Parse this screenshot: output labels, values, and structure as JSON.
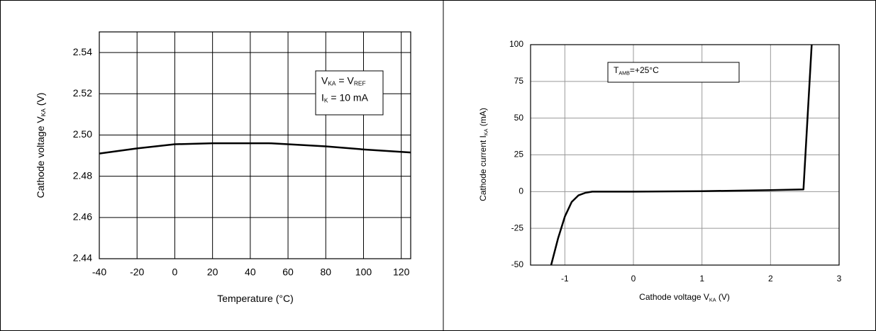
{
  "chart_data": [
    {
      "type": "line",
      "color": "#000000",
      "grid_color": "#000000",
      "x": [
        -40,
        -20,
        0,
        20,
        40,
        50,
        60,
        80,
        100,
        125
      ],
      "values": [
        2.491,
        2.4935,
        2.4955,
        2.496,
        2.496,
        2.496,
        2.4955,
        2.4945,
        2.493,
        2.4915
      ],
      "xlim": [
        -40,
        125
      ],
      "xticks": [
        -40,
        -20,
        0,
        20,
        40,
        60,
        80,
        100,
        120
      ],
      "ylim": [
        2.44,
        2.55
      ],
      "yticks": [
        2.44,
        2.46,
        2.48,
        {
          "value": 2.5,
          "label": "2.50"
        },
        2.52,
        2.54
      ],
      "xlabel": [
        {
          "text": "Temperature (°C)"
        }
      ],
      "ylabel": [
        {
          "text": "Cathode voltage V"
        },
        {
          "sub": "KA"
        },
        {
          "text": " (V)"
        }
      ],
      "annotation": [
        [
          {
            "text": "V"
          },
          {
            "sub": "KA"
          },
          {
            "text": " = V"
          },
          {
            "sub": "REF"
          }
        ],
        [
          {
            "text": "I"
          },
          {
            "sub": "K"
          },
          {
            "text": " = 10 mA"
          }
        ]
      ]
    },
    {
      "type": "line",
      "color": "#000000",
      "grid_color": "#999999",
      "x": [
        -1.2,
        -1.1,
        -1.0,
        -0.9,
        -0.8,
        -0.7,
        -0.6,
        0,
        1,
        2,
        2.48,
        2.6
      ],
      "values": [
        -50,
        -32,
        -17,
        -7,
        -2.5,
        -0.8,
        0,
        0,
        0.3,
        1,
        1.5,
        100
      ],
      "xlim": [
        -1.5,
        3
      ],
      "xticks": [
        -1,
        0,
        1,
        2,
        3
      ],
      "ylim": [
        -50,
        100
      ],
      "yticks": [
        -50,
        -25,
        0,
        25,
        50,
        75,
        100
      ],
      "xlabel": [
        {
          "text": "Cathode voltage V"
        },
        {
          "sub": "KA"
        },
        {
          "text": " (V)"
        }
      ],
      "ylabel": [
        {
          "text": "Cathode current I"
        },
        {
          "sub": "KA"
        },
        {
          "text": " (mA)"
        }
      ],
      "annotation": [
        [
          {
            "text": "T"
          },
          {
            "sub": "AMB"
          },
          {
            "text": "=+25°C"
          }
        ]
      ]
    }
  ]
}
